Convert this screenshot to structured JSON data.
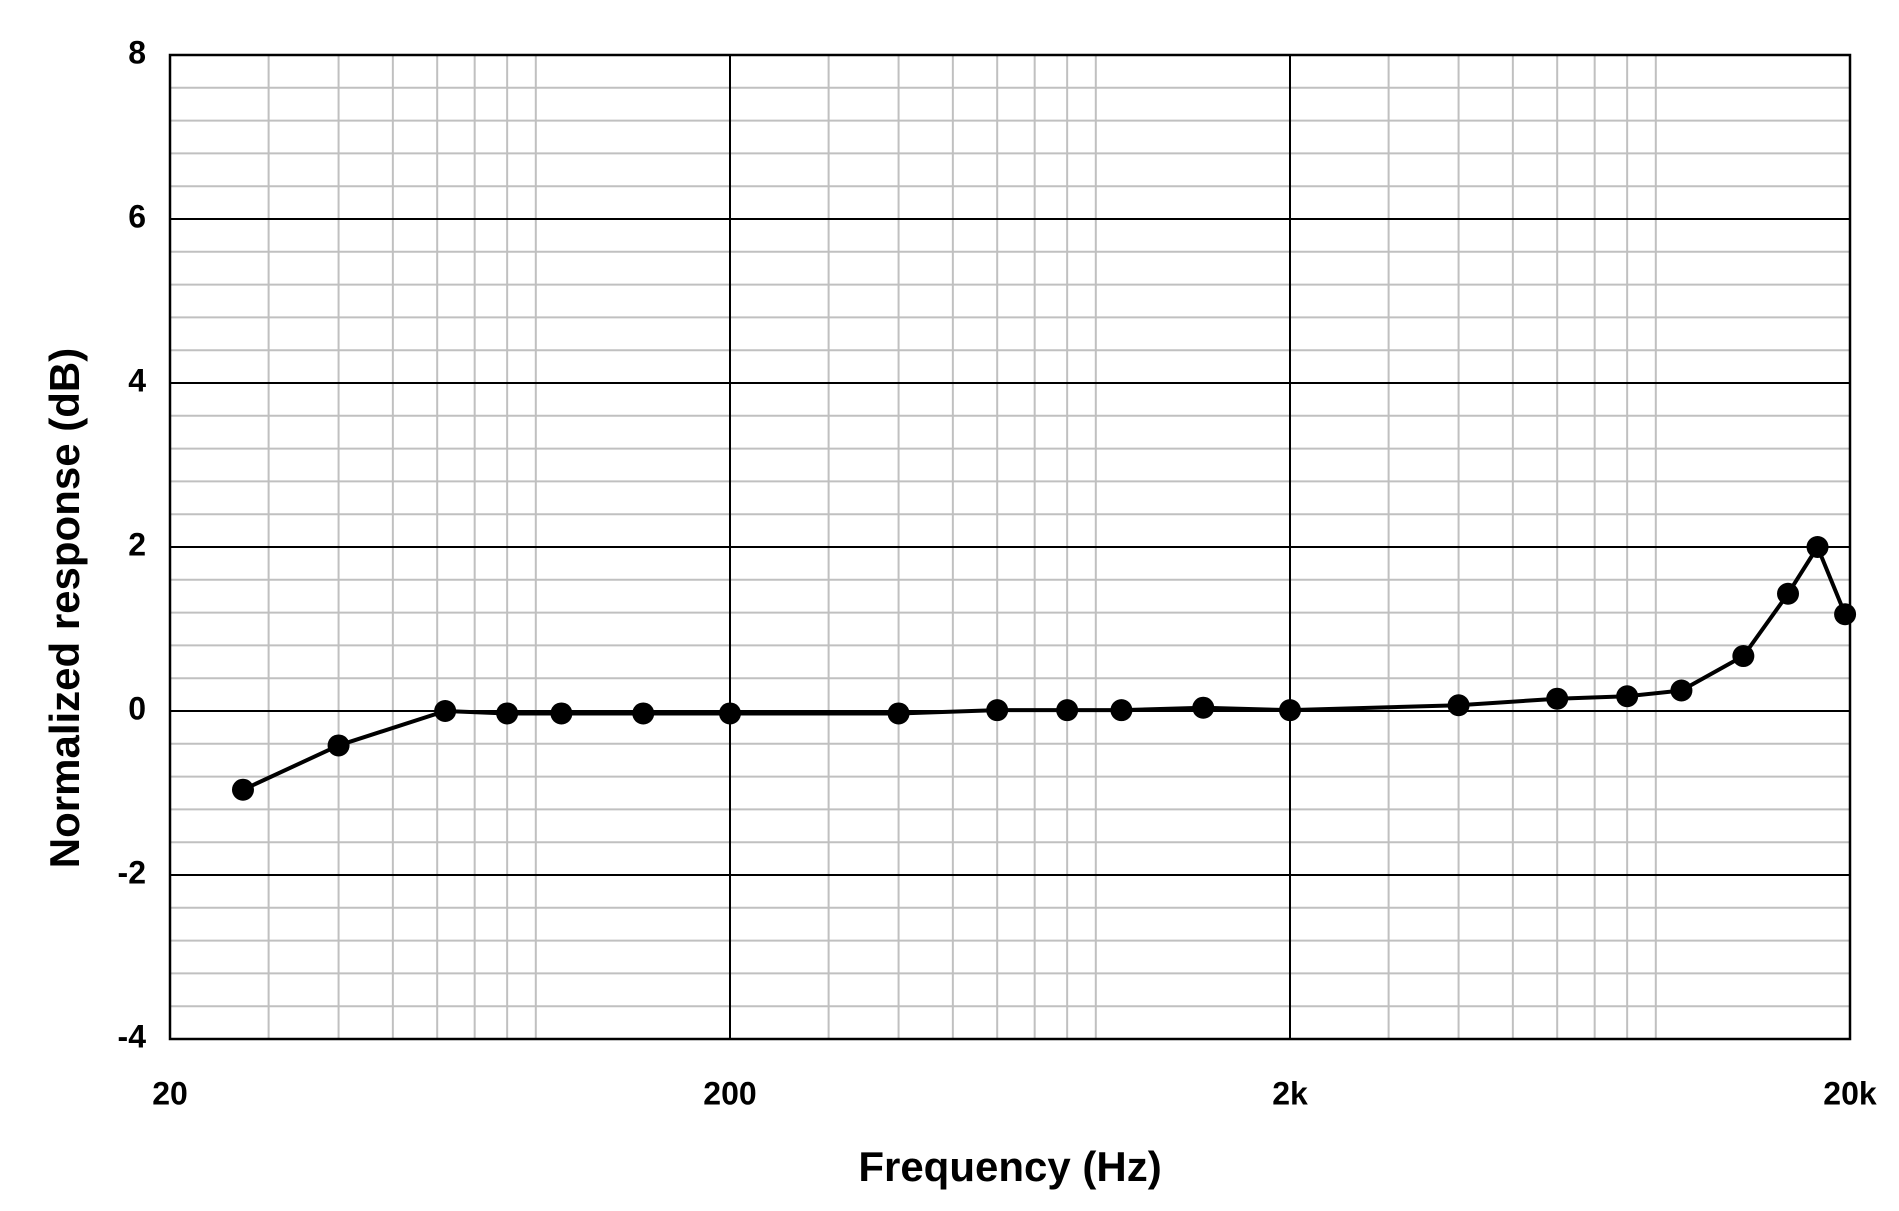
{
  "chart_data": {
    "type": "line",
    "x_label": "Frequency (Hz)",
    "y_label": "Normalized response (dB)",
    "x": [
      27,
      40,
      62,
      80,
      100,
      140,
      200,
      400,
      600,
      800,
      1000,
      1400,
      2000,
      4000,
      6000,
      8000,
      10000,
      12900,
      15500,
      17500,
      19600
    ],
    "values": [
      -0.96,
      -0.42,
      0,
      -0.03,
      -0.03,
      -0.03,
      -0.03,
      -0.03,
      0.01,
      0.01,
      0.01,
      0.04,
      0.01,
      0.07,
      0.15,
      0.18,
      0.25,
      0.67,
      1.43,
      2.0,
      1.18
    ],
    "color": "#000000",
    "xscale": "log",
    "xlim": [
      20,
      20000
    ],
    "xticks": [
      20,
      200,
      {
        "value": 2000,
        "label": "2k"
      },
      {
        "value": 20000,
        "label": "20k"
      }
    ],
    "ylim": [
      -4,
      8
    ],
    "yticks": [
      -4,
      -2,
      0,
      2,
      4,
      6,
      8
    ],
    "grid": true,
    "markers": true
  }
}
